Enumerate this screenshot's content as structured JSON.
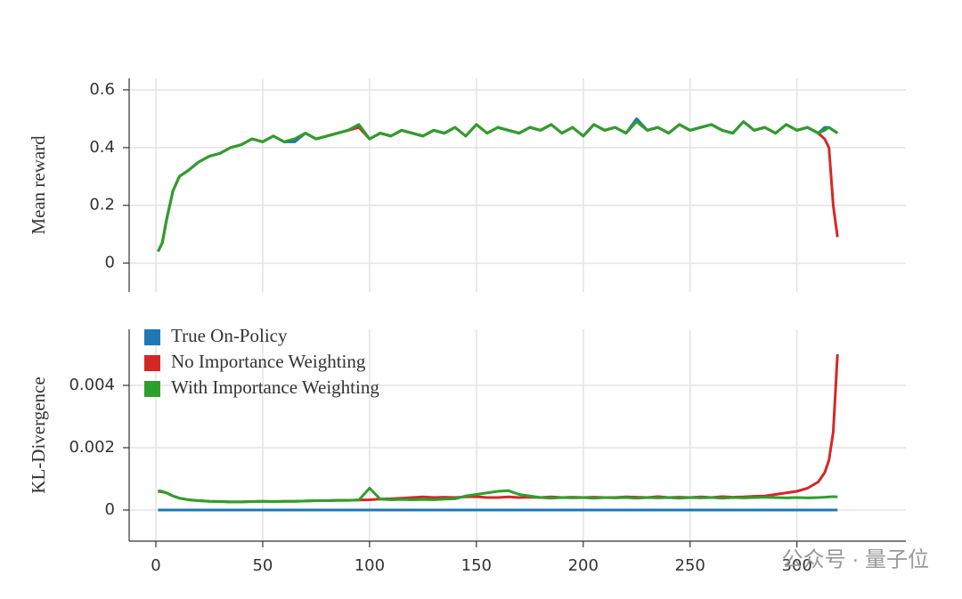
{
  "chart_data": [
    {
      "type": "line",
      "ylabel": "Mean reward",
      "xtick_labels": false,
      "grid": true,
      "x": [
        1,
        3,
        5,
        8,
        11,
        15,
        20,
        25,
        30,
        35,
        40,
        45,
        50,
        55,
        60,
        65,
        70,
        75,
        80,
        85,
        90,
        95,
        100,
        105,
        110,
        115,
        120,
        125,
        130,
        135,
        140,
        145,
        150,
        155,
        160,
        165,
        170,
        175,
        180,
        185,
        190,
        195,
        200,
        205,
        210,
        215,
        220,
        225,
        230,
        235,
        240,
        245,
        250,
        255,
        260,
        265,
        270,
        275,
        280,
        285,
        290,
        295,
        300,
        305,
        310,
        313,
        315,
        317,
        319
      ],
      "xlim": [
        -12.5,
        351
      ],
      "xticks": [
        0,
        50,
        100,
        150,
        200,
        250,
        300
      ],
      "ylim": [
        -0.1,
        0.64
      ],
      "yticks": [
        0,
        0.2,
        0.4,
        0.6
      ],
      "series": [
        {
          "color": "#1f77b4",
          "values": [
            0.04,
            0.07,
            0.15,
            0.25,
            0.3,
            0.32,
            0.35,
            0.37,
            0.38,
            0.4,
            0.41,
            0.43,
            0.42,
            0.44,
            0.42,
            0.42,
            0.45,
            0.43,
            0.44,
            0.45,
            0.46,
            0.48,
            0.43,
            0.45,
            0.44,
            0.46,
            0.45,
            0.44,
            0.46,
            0.45,
            0.47,
            0.44,
            0.48,
            0.45,
            0.47,
            0.46,
            0.45,
            0.47,
            0.46,
            0.48,
            0.45,
            0.47,
            0.44,
            0.48,
            0.46,
            0.47,
            0.45,
            0.5,
            0.46,
            0.47,
            0.45,
            0.48,
            0.46,
            0.47,
            0.48,
            0.46,
            0.45,
            0.49,
            0.46,
            0.47,
            0.45,
            0.48,
            0.46,
            0.47,
            0.45,
            0.47,
            0.47,
            0.46,
            0.45
          ]
        },
        {
          "color": "#d62728",
          "values": [
            0.04,
            0.07,
            0.15,
            0.25,
            0.3,
            0.32,
            0.35,
            0.37,
            0.38,
            0.4,
            0.41,
            0.43,
            0.42,
            0.44,
            0.42,
            0.43,
            0.45,
            0.43,
            0.44,
            0.45,
            0.46,
            0.47,
            0.43,
            0.45,
            0.44,
            0.46,
            0.45,
            0.44,
            0.46,
            0.45,
            0.47,
            0.44,
            0.48,
            0.45,
            0.47,
            0.46,
            0.45,
            0.47,
            0.46,
            0.48,
            0.45,
            0.47,
            0.44,
            0.48,
            0.46,
            0.47,
            0.45,
            0.49,
            0.46,
            0.47,
            0.45,
            0.48,
            0.46,
            0.47,
            0.48,
            0.46,
            0.45,
            0.49,
            0.46,
            0.47,
            0.45,
            0.48,
            0.46,
            0.47,
            0.45,
            0.43,
            0.4,
            0.2,
            0.09
          ]
        },
        {
          "color": "#2ca02c",
          "values": [
            0.04,
            0.07,
            0.15,
            0.25,
            0.3,
            0.32,
            0.35,
            0.37,
            0.38,
            0.4,
            0.41,
            0.43,
            0.42,
            0.44,
            0.42,
            0.43,
            0.45,
            0.43,
            0.44,
            0.45,
            0.46,
            0.48,
            0.43,
            0.45,
            0.44,
            0.46,
            0.45,
            0.44,
            0.46,
            0.45,
            0.47,
            0.44,
            0.48,
            0.45,
            0.47,
            0.46,
            0.45,
            0.47,
            0.46,
            0.48,
            0.45,
            0.47,
            0.44,
            0.48,
            0.46,
            0.47,
            0.45,
            0.49,
            0.46,
            0.47,
            0.45,
            0.48,
            0.46,
            0.47,
            0.48,
            0.46,
            0.45,
            0.49,
            0.46,
            0.47,
            0.45,
            0.48,
            0.46,
            0.47,
            0.45,
            0.46,
            0.47,
            0.46,
            0.45
          ]
        }
      ]
    },
    {
      "type": "line",
      "ylabel": "KL-Divergence",
      "xtick_labels": true,
      "grid": true,
      "legend": "upper left",
      "x": [
        1,
        3,
        5,
        8,
        11,
        15,
        20,
        25,
        30,
        35,
        40,
        45,
        50,
        55,
        60,
        65,
        70,
        75,
        80,
        85,
        90,
        95,
        100,
        105,
        110,
        115,
        120,
        125,
        130,
        135,
        140,
        145,
        150,
        155,
        160,
        165,
        170,
        175,
        180,
        185,
        190,
        195,
        200,
        205,
        210,
        215,
        220,
        225,
        230,
        235,
        240,
        245,
        250,
        255,
        260,
        265,
        270,
        275,
        280,
        285,
        290,
        295,
        300,
        305,
        310,
        313,
        315,
        317,
        319
      ],
      "xlim": [
        -12.5,
        351
      ],
      "xticks": [
        0,
        50,
        100,
        150,
        200,
        250,
        300
      ],
      "ylim": [
        -0.001,
        0.0058
      ],
      "yticks": [
        0,
        0.002,
        0.004
      ],
      "series": [
        {
          "name": "True On-Policy",
          "color": "#1f77b4",
          "values": [
            0,
            0,
            0,
            0,
            0,
            0,
            0,
            0,
            0,
            0,
            0,
            0,
            0,
            0,
            0,
            0,
            0,
            0,
            0,
            0,
            0,
            0,
            0,
            0,
            0,
            0,
            0,
            0,
            0,
            0,
            0,
            0,
            0,
            0,
            0,
            0,
            0,
            0,
            0,
            0,
            0,
            0,
            0,
            0,
            0,
            0,
            0,
            0,
            0,
            0,
            0,
            0,
            0,
            0,
            0,
            0,
            0,
            0,
            0,
            0,
            0,
            0,
            0,
            0,
            0,
            0,
            0,
            0,
            0
          ]
        },
        {
          "name": "No Importance Weighting",
          "color": "#d62728",
          "values": [
            0.0006,
            0.00058,
            0.00055,
            0.00045,
            0.00038,
            0.00033,
            0.0003,
            0.00028,
            0.00027,
            0.00026,
            0.00026,
            0.00027,
            0.00028,
            0.00027,
            0.00028,
            0.00028,
            0.00029,
            0.0003,
            0.0003,
            0.00031,
            0.00031,
            0.00032,
            0.00033,
            0.00035,
            0.00036,
            0.00038,
            0.0004,
            0.00042,
            0.0004,
            0.00041,
            0.0004,
            0.00042,
            0.00043,
            0.0004,
            0.0004,
            0.00042,
            0.0004,
            0.00041,
            0.0004,
            0.00042,
            0.0004,
            0.00041,
            0.0004,
            0.00041,
            0.0004,
            0.0004,
            0.00042,
            0.00041,
            0.0004,
            0.00043,
            0.0004,
            0.00041,
            0.0004,
            0.00042,
            0.0004,
            0.00043,
            0.00041,
            0.00042,
            0.00044,
            0.00045,
            0.0005,
            0.00055,
            0.0006,
            0.0007,
            0.0009,
            0.0012,
            0.0016,
            0.0025,
            0.005
          ]
        },
        {
          "name": "With Importance Weighting",
          "color": "#2ca02c",
          "values": [
            0.00062,
            0.0006,
            0.00055,
            0.00045,
            0.00038,
            0.00033,
            0.0003,
            0.00028,
            0.00027,
            0.00026,
            0.00026,
            0.00027,
            0.00028,
            0.00027,
            0.00028,
            0.00028,
            0.00029,
            0.0003,
            0.0003,
            0.00031,
            0.00031,
            0.00032,
            0.0007,
            0.00035,
            0.00033,
            0.00034,
            0.00033,
            0.00034,
            0.00033,
            0.00035,
            0.00036,
            0.00045,
            0.0005,
            0.00055,
            0.0006,
            0.00062,
            0.0005,
            0.00045,
            0.0004,
            0.00038,
            0.0004,
            0.00039,
            0.0004,
            0.00038,
            0.0004,
            0.00039,
            0.0004,
            0.00038,
            0.0004,
            0.00039,
            0.0004,
            0.00038,
            0.0004,
            0.00039,
            0.0004,
            0.00038,
            0.0004,
            0.00039,
            0.0004,
            0.00041,
            0.0004,
            0.00039,
            0.0004,
            0.00039,
            0.0004,
            0.00041,
            0.00042,
            0.00043,
            0.00042
          ]
        }
      ]
    }
  ],
  "watermark": "公众号 · 量子位"
}
